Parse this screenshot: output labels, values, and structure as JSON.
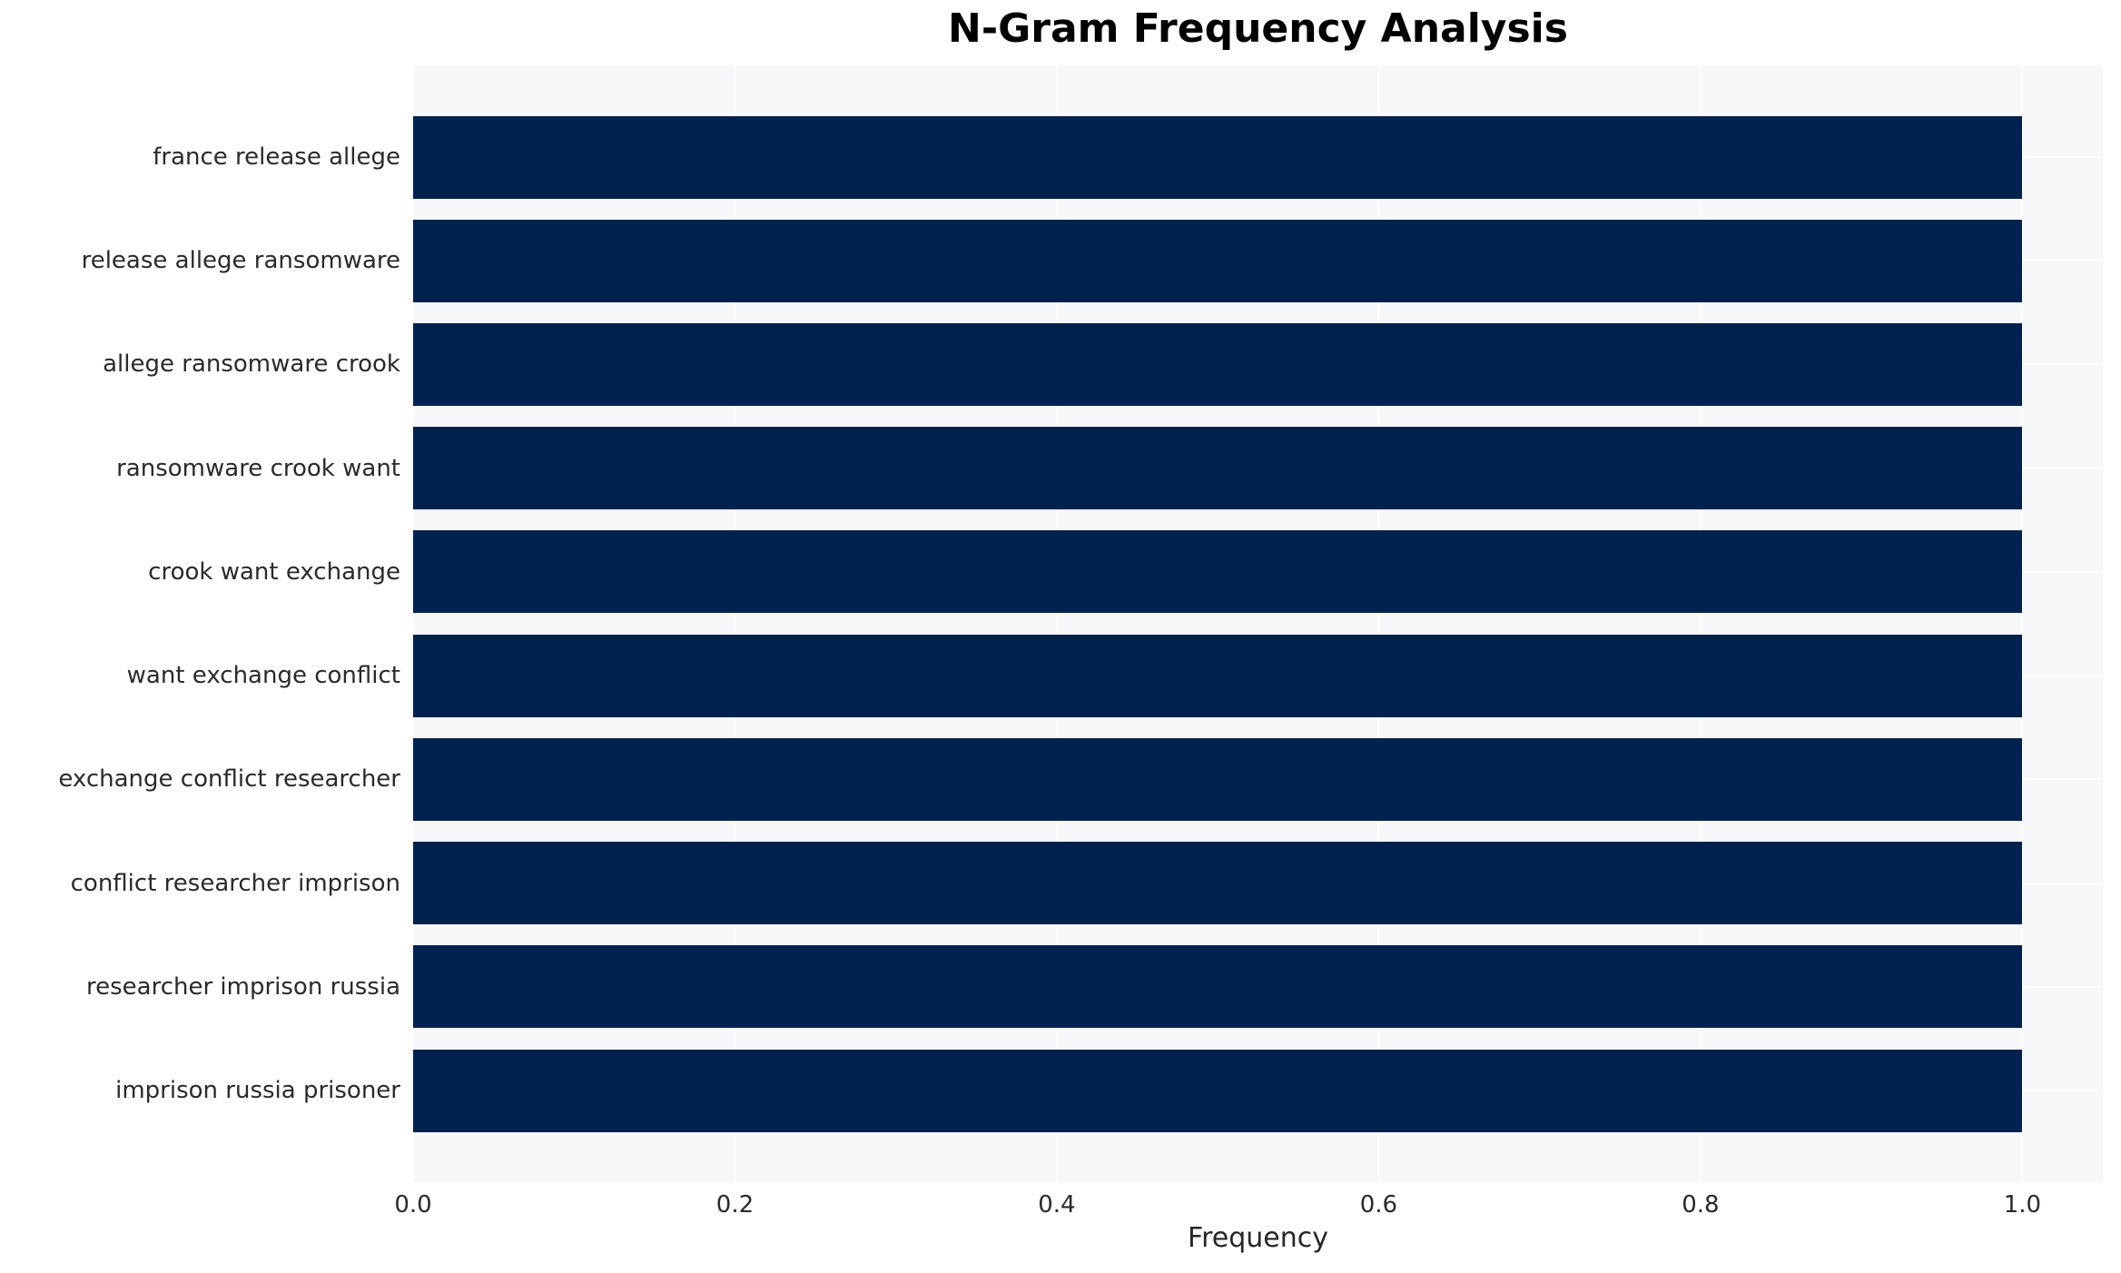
{
  "chart_data": {
    "type": "bar",
    "orientation": "horizontal",
    "title": "N-Gram Frequency Analysis",
    "xlabel": "Frequency",
    "ylabel": "",
    "categories": [
      "france release allege",
      "release allege ransomware",
      "allege ransomware crook",
      "ransomware crook want",
      "crook want exchange",
      "want exchange conflict",
      "exchange conflict researcher",
      "conflict researcher imprison",
      "researcher imprison russia",
      "imprison russia prisoner"
    ],
    "values": [
      1.0,
      1.0,
      1.0,
      1.0,
      1.0,
      1.0,
      1.0,
      1.0,
      1.0,
      1.0
    ],
    "x_ticks": [
      0.0,
      0.2,
      0.4,
      0.6,
      0.8,
      1.0
    ],
    "x_tick_labels": [
      "0.0",
      "0.2",
      "0.4",
      "0.6",
      "0.8",
      "1.0"
    ],
    "xlim": [
      0,
      1.05
    ],
    "grid": true,
    "legend": false,
    "colors": {
      "bar": "#02224e",
      "plot_background": "#f6f7f8",
      "grid_line": "#ffffff",
      "figure_background": "#ffffff",
      "title_text": "#000000",
      "tick_text": "#2a2a2a"
    }
  }
}
